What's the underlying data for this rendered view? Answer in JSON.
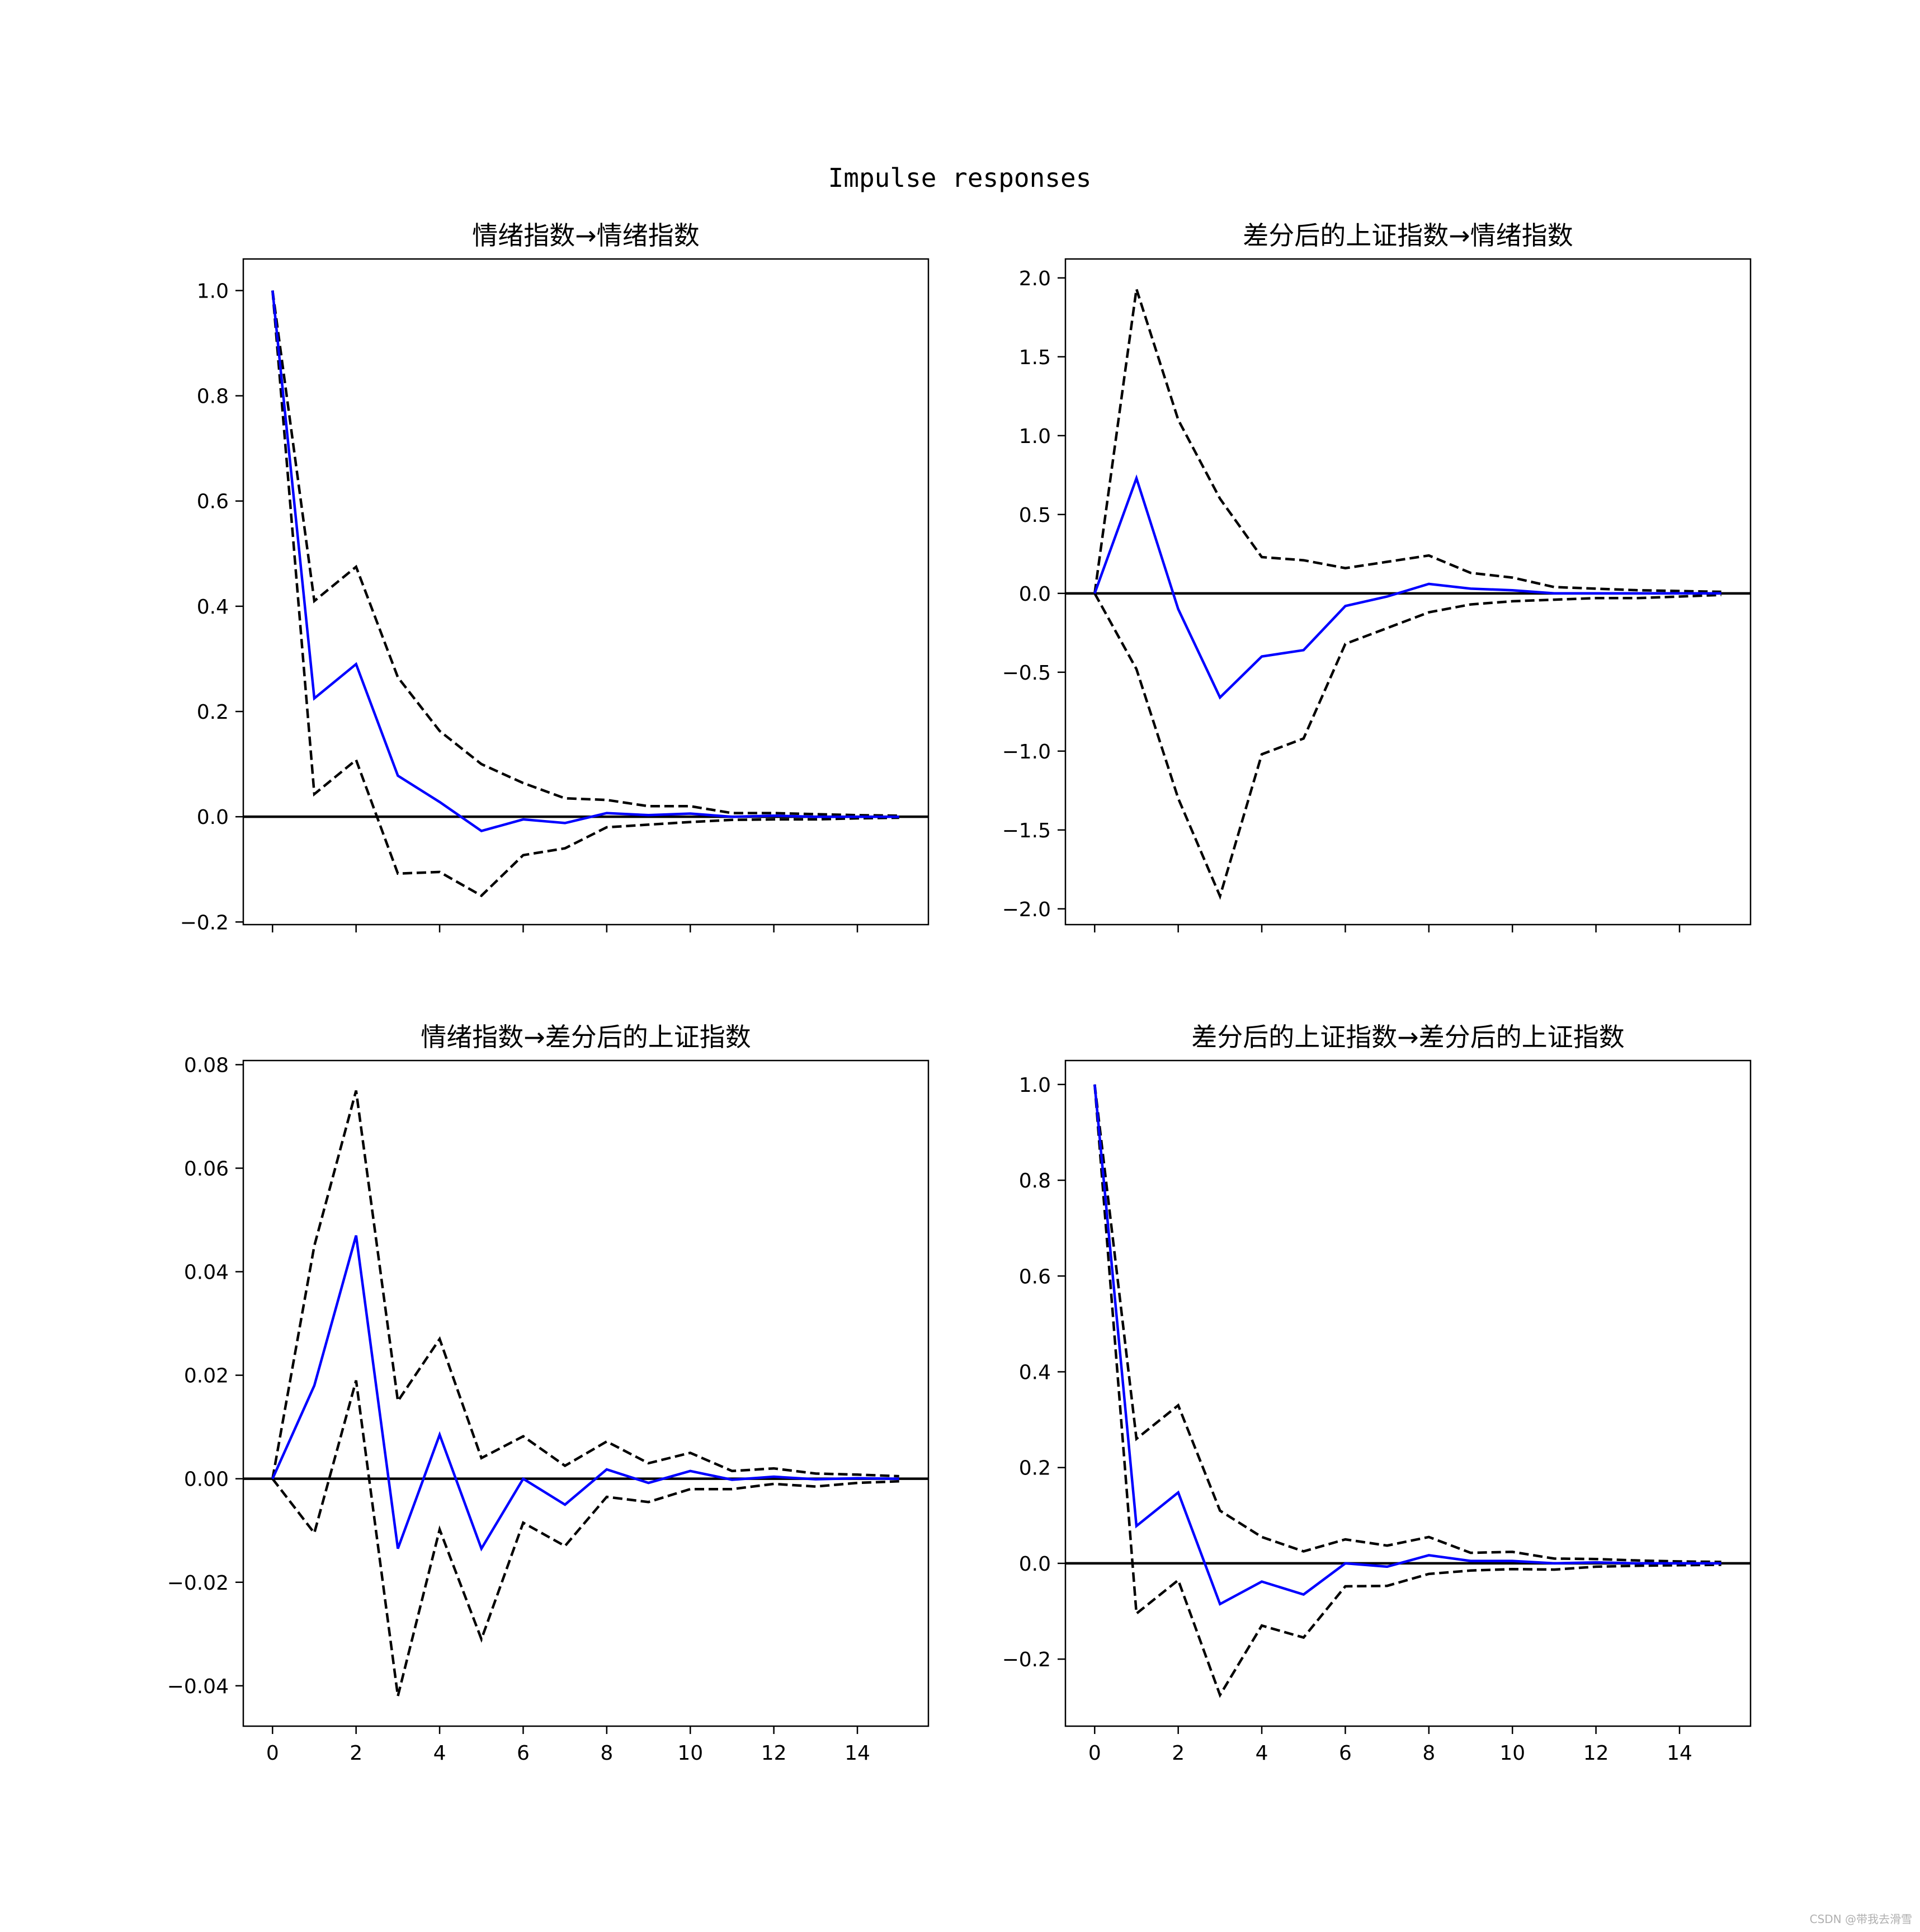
{
  "figure": {
    "title": "Impulse responses"
  },
  "watermark": "CSDN @带我去滑雪",
  "colors": {
    "response": "#0000ff",
    "bands": "#000000",
    "zero_line": "#000000",
    "background": "#ffffff"
  },
  "chart_data": [
    {
      "type": "line",
      "title": "情绪指数→情绪指数",
      "x": [
        0,
        1,
        2,
        3,
        4,
        5,
        6,
        7,
        8,
        9,
        10,
        11,
        12,
        13,
        14,
        15
      ],
      "xticks": [
        0,
        2,
        4,
        6,
        8,
        10,
        12,
        14
      ],
      "xtick_labels_visible": false,
      "xlim": [
        -0.7,
        15.7
      ],
      "ylim": [
        -0.205,
        1.06
      ],
      "yticks": [
        -0.2,
        0.0,
        0.2,
        0.4,
        0.6,
        0.8,
        1.0
      ],
      "ytick_labels": [
        "−0.2",
        "0.0",
        "0.2",
        "0.4",
        "0.6",
        "0.8",
        "1.0"
      ],
      "grid": false,
      "series": [
        {
          "role": "response",
          "style": "solid",
          "color": "#0000ff",
          "values": [
            1.0,
            0.225,
            0.29,
            0.078,
            0.028,
            -0.027,
            -0.005,
            -0.012,
            0.007,
            0.003,
            0.006,
            0.0,
            0.002,
            0.0,
            0.0,
            0.0
          ]
        },
        {
          "role": "upper",
          "style": "dashed",
          "color": "#000000",
          "values": [
            1.0,
            0.41,
            0.475,
            0.265,
            0.163,
            0.1,
            0.064,
            0.035,
            0.032,
            0.02,
            0.02,
            0.007,
            0.007,
            0.005,
            0.003,
            0.002
          ]
        },
        {
          "role": "lower",
          "style": "dashed",
          "color": "#000000",
          "values": [
            1.0,
            0.043,
            0.108,
            -0.108,
            -0.105,
            -0.15,
            -0.073,
            -0.06,
            -0.02,
            -0.015,
            -0.01,
            -0.006,
            -0.005,
            -0.005,
            -0.003,
            -0.002
          ]
        }
      ]
    },
    {
      "type": "line",
      "title": "差分后的上证指数→情绪指数",
      "x": [
        0,
        1,
        2,
        3,
        4,
        5,
        6,
        7,
        8,
        9,
        10,
        11,
        12,
        13,
        14,
        15
      ],
      "xticks": [
        0,
        2,
        4,
        6,
        8,
        10,
        12,
        14
      ],
      "xtick_labels_visible": false,
      "xlim": [
        -0.7,
        15.7
      ],
      "ylim": [
        -2.1,
        2.12
      ],
      "yticks": [
        -2.0,
        -1.5,
        -1.0,
        -0.5,
        0.0,
        0.5,
        1.0,
        1.5,
        2.0
      ],
      "ytick_labels": [
        "−2.0",
        "−1.5",
        "−1.0",
        "−0.5",
        "0.0",
        "0.5",
        "1.0",
        "1.5",
        "2.0"
      ],
      "grid": false,
      "series": [
        {
          "role": "response",
          "style": "solid",
          "color": "#0000ff",
          "values": [
            0.0,
            0.73,
            -0.1,
            -0.66,
            -0.4,
            -0.36,
            -0.08,
            -0.02,
            0.06,
            0.03,
            0.02,
            0.0,
            0.0,
            0.0,
            0.0,
            0.0
          ]
        },
        {
          "role": "upper",
          "style": "dashed",
          "color": "#000000",
          "values": [
            0.0,
            1.93,
            1.1,
            0.6,
            0.23,
            0.21,
            0.16,
            0.2,
            0.24,
            0.13,
            0.1,
            0.04,
            0.03,
            0.02,
            0.015,
            0.01
          ]
        },
        {
          "role": "lower",
          "style": "dashed",
          "color": "#000000",
          "values": [
            0.0,
            -0.48,
            -1.3,
            -1.92,
            -1.02,
            -0.92,
            -0.32,
            -0.22,
            -0.12,
            -0.07,
            -0.05,
            -0.04,
            -0.03,
            -0.03,
            -0.02,
            -0.01
          ]
        }
      ]
    },
    {
      "type": "line",
      "title": "情绪指数→差分后的上证指数",
      "x": [
        0,
        1,
        2,
        3,
        4,
        5,
        6,
        7,
        8,
        9,
        10,
        11,
        12,
        13,
        14,
        15
      ],
      "xticks": [
        0,
        2,
        4,
        6,
        8,
        10,
        12,
        14
      ],
      "xtick_labels": [
        "0",
        "2",
        "4",
        "6",
        "8",
        "10",
        "12",
        "14"
      ],
      "xtick_labels_visible": true,
      "xlim": [
        -0.7,
        15.7
      ],
      "ylim": [
        -0.0478,
        0.0808
      ],
      "yticks": [
        -0.04,
        -0.02,
        0.0,
        0.02,
        0.04,
        0.06,
        0.08
      ],
      "ytick_labels": [
        "−0.04",
        "−0.02",
        "0.00",
        "0.02",
        "0.04",
        "0.06",
        "0.08"
      ],
      "grid": false,
      "series": [
        {
          "role": "response",
          "style": "solid",
          "color": "#0000ff",
          "values": [
            0.0,
            0.018,
            0.047,
            -0.0135,
            0.0085,
            -0.0135,
            0.0,
            -0.005,
            0.0018,
            -0.0008,
            0.0015,
            -0.0002,
            0.0004,
            -0.0001,
            0.0001,
            0.0
          ]
        },
        {
          "role": "upper",
          "style": "dashed",
          "color": "#000000",
          "values": [
            0.0,
            0.045,
            0.075,
            0.015,
            0.027,
            0.004,
            0.0082,
            0.0025,
            0.0072,
            0.003,
            0.005,
            0.0015,
            0.002,
            0.001,
            0.0008,
            0.0005
          ]
        },
        {
          "role": "lower",
          "style": "dashed",
          "color": "#000000",
          "values": [
            0.0,
            -0.0105,
            0.019,
            -0.042,
            -0.0098,
            -0.031,
            -0.0085,
            -0.013,
            -0.0035,
            -0.0045,
            -0.002,
            -0.002,
            -0.001,
            -0.0015,
            -0.0008,
            -0.0005
          ]
        }
      ]
    },
    {
      "type": "line",
      "title": "差分后的上证指数→差分后的上证指数",
      "x": [
        0,
        1,
        2,
        3,
        4,
        5,
        6,
        7,
        8,
        9,
        10,
        11,
        12,
        13,
        14,
        15
      ],
      "xticks": [
        0,
        2,
        4,
        6,
        8,
        10,
        12,
        14
      ],
      "xtick_labels": [
        "0",
        "2",
        "4",
        "6",
        "8",
        "10",
        "12",
        "14"
      ],
      "xtick_labels_visible": true,
      "xlim": [
        -0.7,
        15.7
      ],
      "ylim": [
        -0.34,
        1.05
      ],
      "yticks": [
        -0.2,
        0.0,
        0.2,
        0.4,
        0.6,
        0.8,
        1.0
      ],
      "ytick_labels": [
        "−0.2",
        "0.0",
        "0.2",
        "0.4",
        "0.6",
        "0.8",
        "1.0"
      ],
      "grid": false,
      "series": [
        {
          "role": "response",
          "style": "solid",
          "color": "#0000ff",
          "values": [
            1.0,
            0.078,
            0.148,
            -0.085,
            -0.038,
            -0.065,
            0.0,
            -0.007,
            0.017,
            0.005,
            0.005,
            0.0,
            0.002,
            0.0,
            0.0,
            0.0
          ]
        },
        {
          "role": "upper",
          "style": "dashed",
          "color": "#000000",
          "values": [
            1.0,
            0.26,
            0.33,
            0.11,
            0.055,
            0.025,
            0.05,
            0.037,
            0.055,
            0.022,
            0.024,
            0.01,
            0.009,
            0.006,
            0.004,
            0.003
          ]
        },
        {
          "role": "lower",
          "style": "dashed",
          "color": "#000000",
          "values": [
            1.0,
            -0.105,
            -0.035,
            -0.275,
            -0.13,
            -0.155,
            -0.048,
            -0.047,
            -0.022,
            -0.015,
            -0.012,
            -0.013,
            -0.007,
            -0.005,
            -0.004,
            -0.003
          ]
        }
      ]
    }
  ]
}
